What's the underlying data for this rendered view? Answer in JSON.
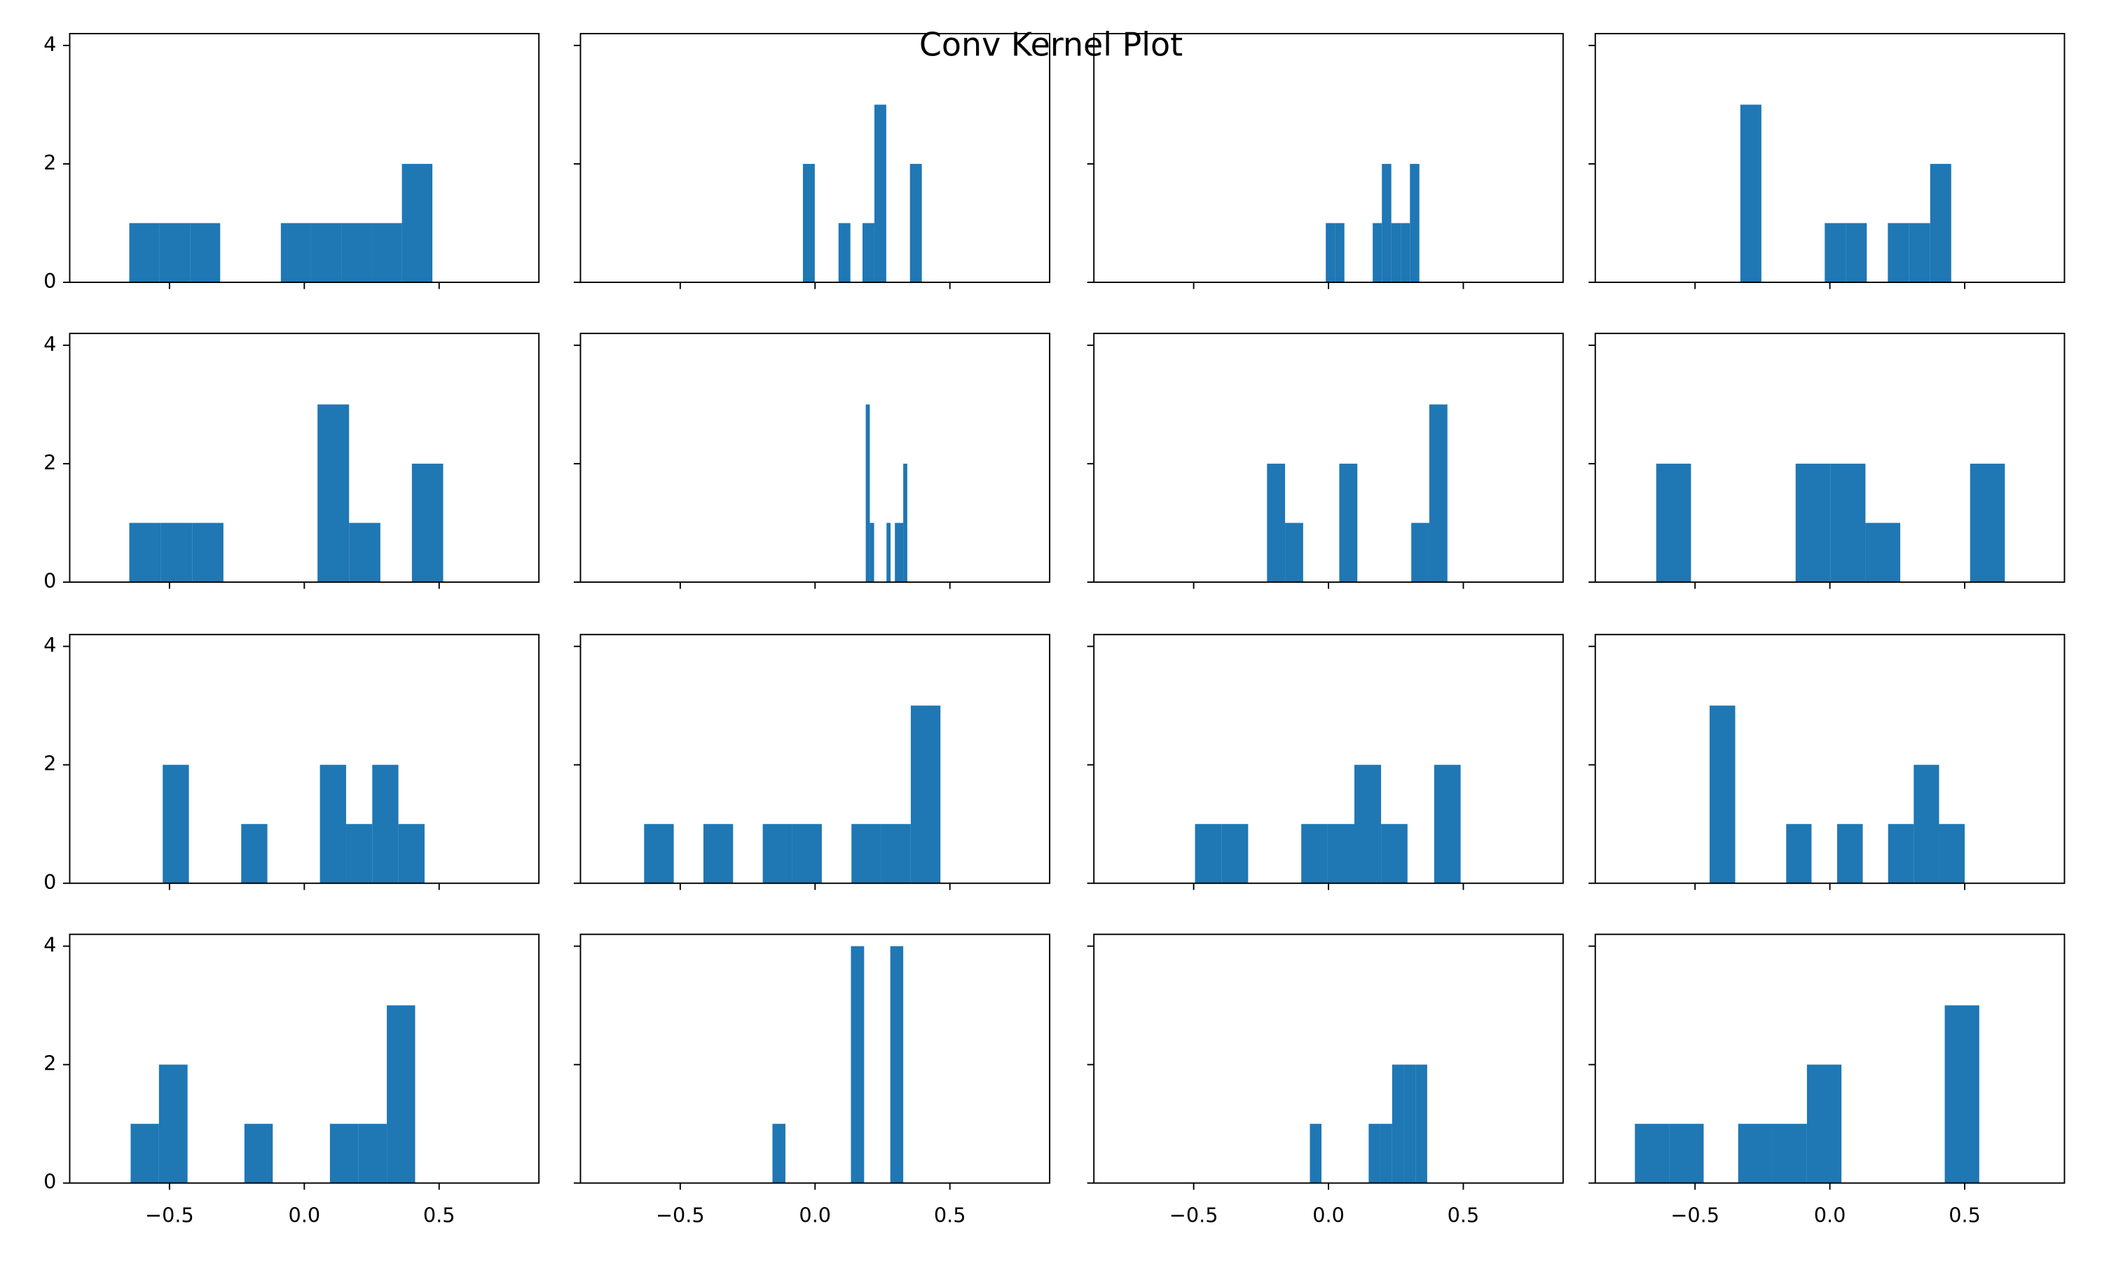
{
  "title": "Conv Kernel Plot",
  "axes": {
    "xlim": [
      -0.87,
      0.87
    ],
    "xticks": [
      {
        "value": -0.5,
        "label": "−0.5"
      },
      {
        "value": 0,
        "label": "0.0"
      },
      0.5
    ],
    "ylim": [
      0,
      4.2
    ],
    "yticks": [
      0,
      2,
      4
    ]
  },
  "chart_data": [
    {
      "type": "histogram",
      "color": "#1f77b4",
      "bins": [
        -0.649,
        -0.537,
        -0.424,
        -0.312,
        -0.2,
        -0.087,
        0.025,
        0.138,
        0.25,
        0.362,
        0.475
      ],
      "values": [
        1,
        1,
        1,
        0,
        0,
        1,
        1,
        1,
        1,
        2
      ]
    },
    {
      "type": "histogram",
      "color": "#1f77b4",
      "bins": [
        -0.045,
        -0.001,
        0.043,
        0.087,
        0.131,
        0.176,
        0.22,
        0.264,
        0.308,
        0.352,
        0.396
      ],
      "values": [
        2,
        0,
        0,
        1,
        0,
        1,
        3,
        0,
        0,
        2
      ]
    },
    {
      "type": "histogram",
      "color": "#1f77b4",
      "bins": [
        -0.01,
        0.025,
        0.059,
        0.094,
        0.129,
        0.164,
        0.198,
        0.233,
        0.268,
        0.302,
        0.337
      ],
      "values": [
        1,
        1,
        0,
        0,
        0,
        1,
        2,
        1,
        1,
        2
      ]
    },
    {
      "type": "histogram",
      "color": "#1f77b4",
      "bins": [
        -0.332,
        -0.254,
        -0.176,
        -0.097,
        -0.019,
        0.059,
        0.137,
        0.215,
        0.294,
        0.372,
        0.45
      ],
      "values": [
        3,
        0,
        0,
        0,
        1,
        1,
        0,
        1,
        1,
        2
      ]
    },
    {
      "type": "histogram",
      "color": "#1f77b4",
      "bins": [
        -0.649,
        -0.533,
        -0.416,
        -0.3,
        -0.183,
        -0.067,
        0.049,
        0.166,
        0.282,
        0.399,
        0.515
      ],
      "values": [
        1,
        1,
        1,
        0,
        0,
        0,
        3,
        1,
        0,
        2
      ]
    },
    {
      "type": "histogram",
      "color": "#1f77b4",
      "bins": [
        0.188,
        0.203,
        0.219,
        0.234,
        0.25,
        0.265,
        0.28,
        0.296,
        0.311,
        0.327,
        0.342
      ],
      "values": [
        3,
        1,
        0,
        0,
        0,
        1,
        0,
        1,
        1,
        2
      ]
    },
    {
      "type": "histogram",
      "color": "#1f77b4",
      "bins": [
        -0.228,
        -0.161,
        -0.094,
        -0.027,
        0.04,
        0.107,
        0.173,
        0.24,
        0.307,
        0.374,
        0.441
      ],
      "values": [
        2,
        1,
        0,
        0,
        2,
        0,
        0,
        0,
        1,
        3
      ]
    },
    {
      "type": "histogram",
      "color": "#1f77b4",
      "bins": [
        -0.644,
        -0.515,
        -0.385,
        -0.256,
        -0.127,
        0.003,
        0.132,
        0.261,
        0.39,
        0.52,
        0.649
      ],
      "values": [
        2,
        0,
        0,
        0,
        2,
        2,
        1,
        0,
        0,
        2
      ]
    },
    {
      "type": "histogram",
      "color": "#1f77b4",
      "bins": [
        -0.525,
        -0.428,
        -0.331,
        -0.234,
        -0.137,
        -0.04,
        0.058,
        0.155,
        0.252,
        0.349,
        0.446
      ],
      "values": [
        2,
        0,
        0,
        1,
        0,
        0,
        2,
        1,
        2,
        1
      ]
    },
    {
      "type": "histogram",
      "color": "#1f77b4",
      "bins": [
        -0.634,
        -0.524,
        -0.414,
        -0.304,
        -0.194,
        -0.085,
        0.025,
        0.135,
        0.245,
        0.355,
        0.465
      ],
      "values": [
        1,
        0,
        1,
        0,
        1,
        1,
        0,
        1,
        1,
        3
      ]
    },
    {
      "type": "histogram",
      "color": "#1f77b4",
      "bins": [
        -0.495,
        -0.397,
        -0.298,
        -0.2,
        -0.101,
        -0.003,
        0.096,
        0.195,
        0.293,
        0.392,
        0.49
      ],
      "values": [
        1,
        1,
        0,
        0,
        1,
        1,
        2,
        1,
        0,
        2
      ]
    },
    {
      "type": "histogram",
      "color": "#1f77b4",
      "bins": [
        -0.446,
        -0.351,
        -0.257,
        -0.162,
        -0.068,
        0.027,
        0.122,
        0.216,
        0.311,
        0.405,
        0.5
      ],
      "values": [
        3,
        0,
        0,
        1,
        0,
        1,
        0,
        1,
        2,
        1
      ]
    },
    {
      "type": "histogram",
      "color": "#1f77b4",
      "bins": [
        -0.644,
        -0.539,
        -0.433,
        -0.328,
        -0.222,
        -0.117,
        -0.011,
        0.095,
        0.2,
        0.306,
        0.411
      ],
      "values": [
        1,
        2,
        0,
        0,
        1,
        0,
        0,
        1,
        1,
        3
      ]
    },
    {
      "type": "histogram",
      "color": "#1f77b4",
      "bins": [
        -0.158,
        -0.11,
        -0.061,
        -0.013,
        0.036,
        0.085,
        0.133,
        0.182,
        0.23,
        0.279,
        0.327
      ],
      "values": [
        1,
        0,
        0,
        0,
        0,
        0,
        4,
        0,
        0,
        4
      ]
    },
    {
      "type": "histogram",
      "color": "#1f77b4",
      "bins": [
        -0.069,
        -0.026,
        0.018,
        0.061,
        0.105,
        0.149,
        0.192,
        0.236,
        0.279,
        0.323,
        0.366
      ],
      "values": [
        1,
        0,
        0,
        0,
        0,
        1,
        1,
        2,
        2,
        2
      ]
    },
    {
      "type": "histogram",
      "color": "#1f77b4",
      "bins": [
        -0.723,
        -0.595,
        -0.468,
        -0.34,
        -0.212,
        -0.085,
        0.043,
        0.171,
        0.298,
        0.426,
        0.554
      ],
      "values": [
        1,
        1,
        0,
        1,
        1,
        2,
        0,
        0,
        0,
        3
      ]
    }
  ]
}
